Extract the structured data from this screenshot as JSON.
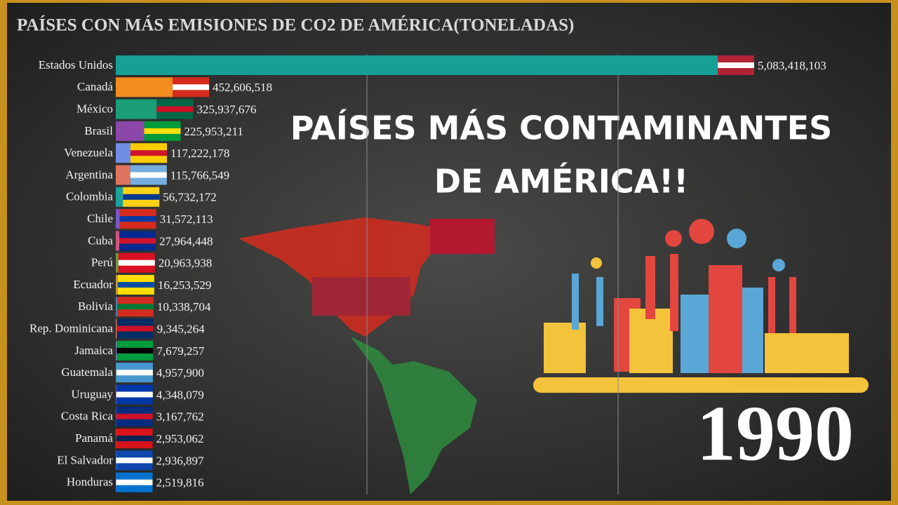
{
  "chart_data": {
    "type": "hbar",
    "title": "PAÍSES CON MÁS EMISIONES DE CO2 DE AMÉRICA(TONELADAS)",
    "annotations": [
      "PAÍSES MÁS CONTAMINANTES",
      "DE AMÉRICA!!"
    ],
    "year": "1990",
    "categories": [
      "Estados Unidos",
      "Canadá",
      "México",
      "Brasil",
      "Venezuela",
      "Argentina",
      "Colombia",
      "Chile",
      "Cuba",
      "Perú",
      "Ecuador",
      "Bolivia",
      "Rep. Dominicana",
      "Jamaica",
      "Guatemala",
      "Uruguay",
      "Costa Rica",
      "Panamá",
      "El Salvador",
      "Honduras"
    ],
    "values": [
      5083418103,
      452606518,
      325937676,
      225953211,
      117222178,
      115766549,
      56732172,
      31572113,
      27964448,
      20963938,
      16253529,
      10338704,
      9345264,
      7679257,
      4957900,
      4348079,
      3167762,
      2953062,
      2936897,
      2519816
    ],
    "value_labels": [
      "5,083,418,103",
      "452,606,518",
      "325,937,676",
      "225,953,211",
      "117,222,178",
      "115,766,549",
      "56,732,172",
      "31,572,113",
      "27,964,448",
      "20,963,938",
      "16,253,529",
      "10,338,704",
      "9,345,264",
      "7,679,257",
      "4,957,900",
      "4,348,079",
      "3,167,762",
      "2,953,062",
      "2,936,897",
      "2,519,816"
    ],
    "colors": [
      "#159f95",
      "#f28c1c",
      "#1a9e78",
      "#8c48a8",
      "#6f8fe6",
      "#e0735e",
      "#1aa3a0",
      "#7a57c9",
      "#d3567d",
      "#6b9a3a",
      "#c5963a",
      "#3b8fd0",
      "#d86b5b",
      "#8a6cc7",
      "#3d9e8a",
      "#b86ac9",
      "#5c86cc",
      "#d08944",
      "#4aa3b5",
      "#9a5ec0"
    ],
    "xlim": [
      0,
      5100000000
    ],
    "xgrid": [
      2000000000,
      4000000000
    ]
  }
}
